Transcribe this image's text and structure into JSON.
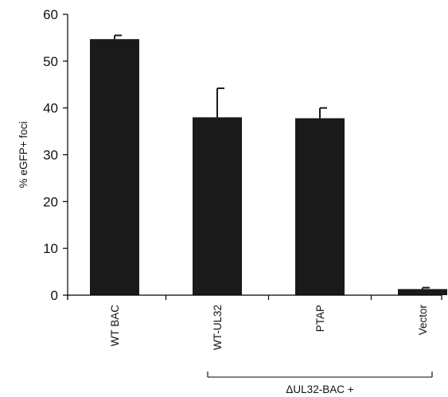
{
  "chart_data": {
    "type": "bar",
    "title": "",
    "xlabel": "",
    "ylabel": "% eGFP+ foci",
    "ylim": [
      0,
      60
    ],
    "yticks": [
      0,
      10,
      20,
      30,
      40,
      50,
      60
    ],
    "categories": [
      "WT BAC",
      "WT-UL32",
      "PTAP",
      "Vector"
    ],
    "values": [
      54.7,
      38.0,
      37.8,
      1.3
    ],
    "errors": [
      0.8,
      6.2,
      2.2,
      0.3
    ],
    "bar_color": "#1a1a1a",
    "grid": false,
    "group_annotation": {
      "label": "ΔUL32-BAC +",
      "categories": [
        "WT-UL32",
        "PTAP",
        "Vector"
      ]
    }
  }
}
